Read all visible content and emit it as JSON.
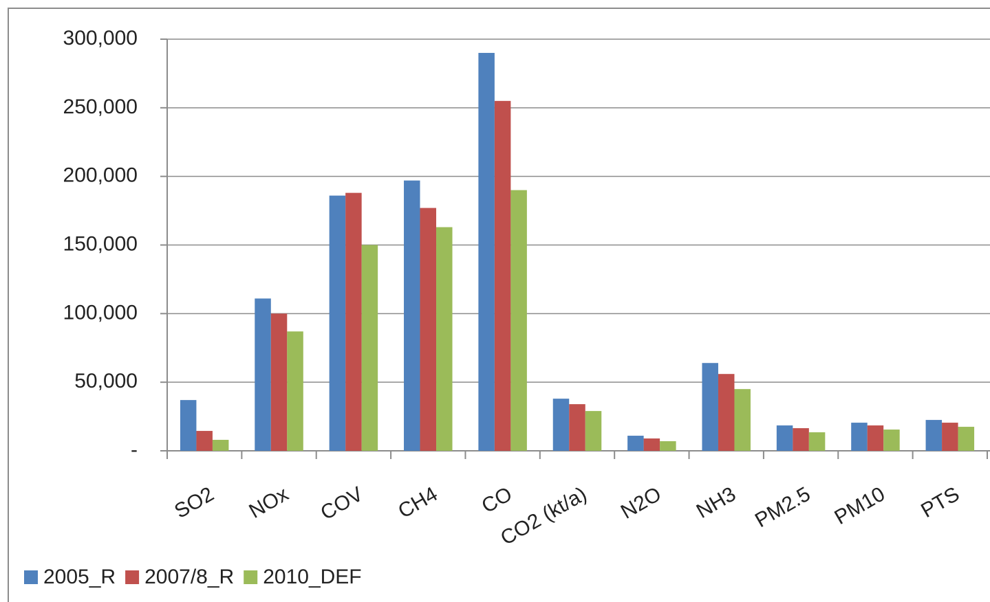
{
  "chart_data": {
    "type": "bar",
    "categories": [
      "SO2",
      "NOx",
      "COV",
      "CH4",
      "CO",
      "CO2 (kt/a)",
      "N2O",
      "NH3",
      "PM2.5",
      "PM10",
      "PTS"
    ],
    "series": [
      {
        "name": "2005_R",
        "color": "#4f81bd",
        "values": [
          37000,
          111000,
          186000,
          197000,
          290000,
          38000,
          11000,
          64000,
          18500,
          20500,
          22500
        ]
      },
      {
        "name": "2007/8_R",
        "color": "#c0504d",
        "values": [
          14500,
          100000,
          188000,
          177000,
          255000,
          34000,
          9000,
          56000,
          16500,
          18500,
          20500
        ]
      },
      {
        "name": "2010_DEF",
        "color": "#9bbb59",
        "values": [
          8000,
          87000,
          150000,
          163000,
          190000,
          29000,
          7000,
          45000,
          13500,
          15500,
          17500
        ]
      }
    ],
    "ylim": [
      0,
      300000
    ],
    "yticks": [
      {
        "value": 0,
        "label": "-"
      },
      {
        "value": 50000,
        "label": "50,000"
      },
      {
        "value": 100000,
        "label": "100,000"
      },
      {
        "value": 150000,
        "label": "150,000"
      },
      {
        "value": 200000,
        "label": "200,000"
      },
      {
        "value": 250000,
        "label": "250,000"
      },
      {
        "value": 300000,
        "label": "300,000"
      }
    ],
    "grid": true,
    "legend": "bottom-left"
  }
}
